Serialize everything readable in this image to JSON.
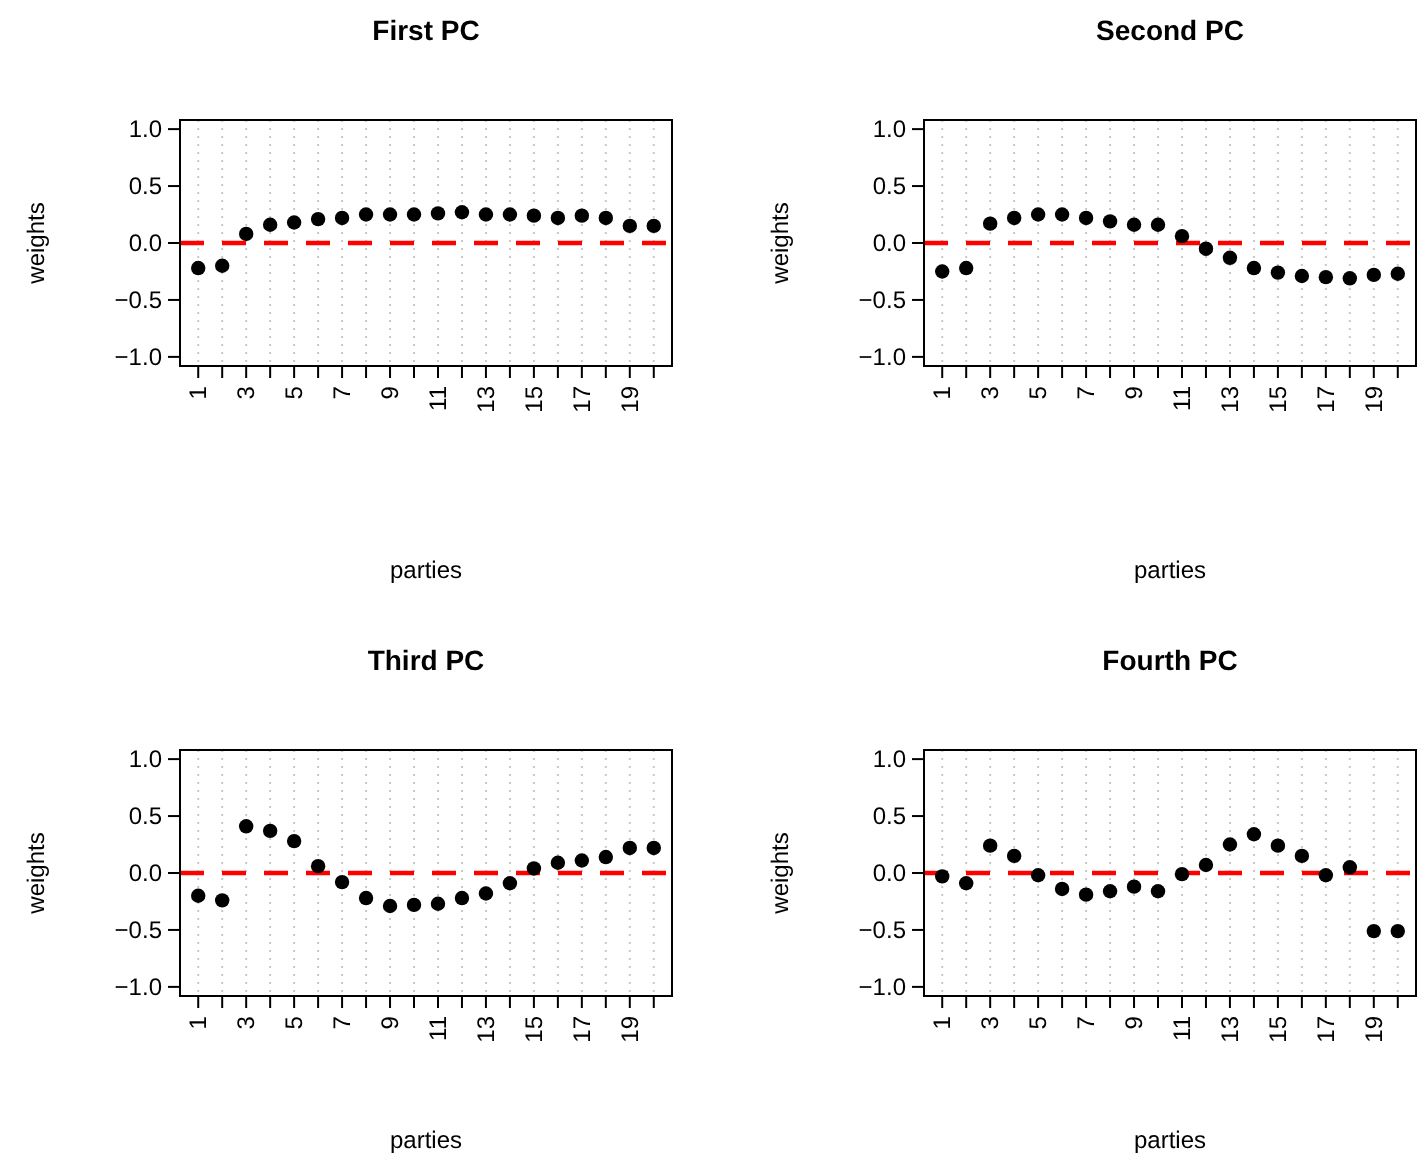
{
  "chart_data": [
    {
      "type": "scatter",
      "title": "First PC",
      "xlabel": "parties",
      "ylabel": "weights",
      "x": [
        1,
        2,
        3,
        4,
        5,
        6,
        7,
        8,
        9,
        10,
        11,
        12,
        13,
        14,
        15,
        16,
        17,
        18,
        19,
        20
      ],
      "values": [
        -0.22,
        -0.2,
        0.08,
        0.16,
        0.18,
        0.21,
        0.22,
        0.25,
        0.25,
        0.25,
        0.26,
        0.27,
        0.25,
        0.25,
        0.24,
        0.22,
        0.24,
        0.22,
        0.15,
        0.15
      ],
      "color": "#000000",
      "marker": "circle",
      "xlim": [
        0.24,
        20.76
      ],
      "ylim": [
        -1.08,
        1.08
      ],
      "xticks": [
        1,
        {
          "value": 2,
          "label": null
        },
        3,
        {
          "value": 4,
          "label": null
        },
        5,
        {
          "value": 6,
          "label": null
        },
        7,
        {
          "value": 8,
          "label": null
        },
        9,
        {
          "value": 10,
          "label": null
        },
        11,
        {
          "value": 12,
          "label": null
        },
        13,
        {
          "value": 14,
          "label": null
        },
        15,
        {
          "value": 16,
          "label": null
        },
        17,
        {
          "value": 18,
          "label": null
        },
        19,
        {
          "value": 20,
          "label": null
        }
      ],
      "yticks": [
        {
          "value": -1,
          "label": "−1.0"
        },
        {
          "value": -0.5,
          "label": "−0.5"
        },
        {
          "value": 0,
          "label": "0.0"
        },
        {
          "value": 0.5,
          "label": "0.5"
        },
        {
          "value": 1,
          "label": "1.0"
        }
      ],
      "grid": "x",
      "ref_lines": [
        {
          "axis": "y",
          "value": 0,
          "color": "#ff0000",
          "line_style": "dashed"
        }
      ]
    },
    {
      "type": "scatter",
      "title": "Second PC",
      "xlabel": "parties",
      "ylabel": "weights",
      "x": [
        1,
        2,
        3,
        4,
        5,
        6,
        7,
        8,
        9,
        10,
        11,
        12,
        13,
        14,
        15,
        16,
        17,
        18,
        19,
        20
      ],
      "values": [
        -0.25,
        -0.22,
        0.17,
        0.22,
        0.25,
        0.25,
        0.22,
        0.19,
        0.16,
        0.16,
        0.06,
        -0.05,
        -0.13,
        -0.22,
        -0.26,
        -0.29,
        -0.3,
        -0.31,
        -0.28,
        -0.27
      ],
      "color": "#000000",
      "marker": "circle",
      "xlim": [
        0.24,
        20.76
      ],
      "ylim": [
        -1.08,
        1.08
      ],
      "xticks": [
        1,
        {
          "value": 2,
          "label": null
        },
        3,
        {
          "value": 4,
          "label": null
        },
        5,
        {
          "value": 6,
          "label": null
        },
        7,
        {
          "value": 8,
          "label": null
        },
        9,
        {
          "value": 10,
          "label": null
        },
        11,
        {
          "value": 12,
          "label": null
        },
        13,
        {
          "value": 14,
          "label": null
        },
        15,
        {
          "value": 16,
          "label": null
        },
        17,
        {
          "value": 18,
          "label": null
        },
        19,
        {
          "value": 20,
          "label": null
        }
      ],
      "yticks": [
        {
          "value": -1,
          "label": "−1.0"
        },
        {
          "value": -0.5,
          "label": "−0.5"
        },
        {
          "value": 0,
          "label": "0.0"
        },
        {
          "value": 0.5,
          "label": "0.5"
        },
        {
          "value": 1,
          "label": "1.0"
        }
      ],
      "grid": "x",
      "ref_lines": [
        {
          "axis": "y",
          "value": 0,
          "color": "#ff0000",
          "line_style": "dashed"
        }
      ]
    },
    {
      "type": "scatter",
      "title": "Third PC",
      "xlabel": "parties",
      "ylabel": "weights",
      "x": [
        1,
        2,
        3,
        4,
        5,
        6,
        7,
        8,
        9,
        10,
        11,
        12,
        13,
        14,
        15,
        16,
        17,
        18,
        19,
        20
      ],
      "values": [
        -0.2,
        -0.24,
        0.41,
        0.37,
        0.28,
        0.06,
        -0.08,
        -0.22,
        -0.29,
        -0.28,
        -0.27,
        -0.22,
        -0.18,
        -0.09,
        0.04,
        0.09,
        0.11,
        0.14,
        0.22,
        0.22
      ],
      "color": "#000000",
      "marker": "circle",
      "xlim": [
        0.24,
        20.76
      ],
      "ylim": [
        -1.08,
        1.08
      ],
      "xticks": [
        1,
        {
          "value": 2,
          "label": null
        },
        3,
        {
          "value": 4,
          "label": null
        },
        5,
        {
          "value": 6,
          "label": null
        },
        7,
        {
          "value": 8,
          "label": null
        },
        9,
        {
          "value": 10,
          "label": null
        },
        11,
        {
          "value": 12,
          "label": null
        },
        13,
        {
          "value": 14,
          "label": null
        },
        15,
        {
          "value": 16,
          "label": null
        },
        17,
        {
          "value": 18,
          "label": null
        },
        19,
        {
          "value": 20,
          "label": null
        }
      ],
      "yticks": [
        {
          "value": -1,
          "label": "−1.0"
        },
        {
          "value": -0.5,
          "label": "−0.5"
        },
        {
          "value": 0,
          "label": "0.0"
        },
        {
          "value": 0.5,
          "label": "0.5"
        },
        {
          "value": 1,
          "label": "1.0"
        }
      ],
      "grid": "x",
      "ref_lines": [
        {
          "axis": "y",
          "value": 0,
          "color": "#ff0000",
          "line_style": "dashed"
        }
      ]
    },
    {
      "type": "scatter",
      "title": "Fourth PC",
      "xlabel": "parties",
      "ylabel": "weights",
      "x": [
        1,
        2,
        3,
        4,
        5,
        6,
        7,
        8,
        9,
        10,
        11,
        12,
        13,
        14,
        15,
        16,
        17,
        18,
        19,
        20
      ],
      "values": [
        -0.03,
        -0.09,
        0.24,
        0.15,
        -0.02,
        -0.14,
        -0.19,
        -0.16,
        -0.12,
        -0.16,
        -0.01,
        0.07,
        0.25,
        0.34,
        0.24,
        0.15,
        -0.02,
        0.05,
        -0.51,
        -0.51
      ],
      "color": "#000000",
      "marker": "circle",
      "xlim": [
        0.24,
        20.76
      ],
      "ylim": [
        -1.08,
        1.08
      ],
      "xticks": [
        1,
        {
          "value": 2,
          "label": null
        },
        3,
        {
          "value": 4,
          "label": null
        },
        5,
        {
          "value": 6,
          "label": null
        },
        7,
        {
          "value": 8,
          "label": null
        },
        9,
        {
          "value": 10,
          "label": null
        },
        11,
        {
          "value": 12,
          "label": null
        },
        13,
        {
          "value": 14,
          "label": null
        },
        15,
        {
          "value": 16,
          "label": null
        },
        17,
        {
          "value": 18,
          "label": null
        },
        19,
        {
          "value": 20,
          "label": null
        }
      ],
      "yticks": [
        {
          "value": -1,
          "label": "−1.0"
        },
        {
          "value": -0.5,
          "label": "−0.5"
        },
        {
          "value": 0,
          "label": "0.0"
        },
        {
          "value": 0.5,
          "label": "0.5"
        },
        {
          "value": 1,
          "label": "1.0"
        }
      ],
      "grid": "x",
      "ref_lines": [
        {
          "axis": "y",
          "value": 0,
          "color": "#ff0000",
          "line_style": "dashed"
        }
      ]
    }
  ]
}
